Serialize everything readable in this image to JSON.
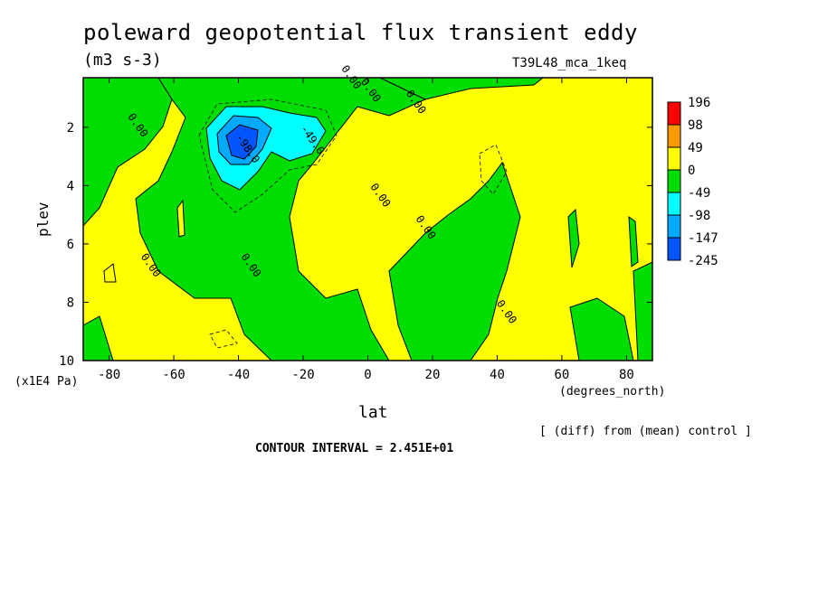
{
  "header": {
    "title": "poleward geopotential flux transient eddy",
    "units": "(m3 s-3)",
    "run_id": "T39L48_mca_1keq"
  },
  "footer": {
    "diff_note": "[ (diff) from (mean) control ]",
    "contour_interval": "CONTOUR INTERVAL = 2.451E+01"
  },
  "chart_data": {
    "type": "heatmap",
    "title": "poleward geopotential flux transient eddy",
    "xlabel": "lat",
    "xunit": "(degrees_north)",
    "ylabel": "plev",
    "yunit": "(x1E4 Pa)",
    "xlim": [
      -88,
      88
    ],
    "ylim": [
      0.3,
      10
    ],
    "y_inverted": true,
    "x_ticks": [
      -80,
      -60,
      -40,
      -20,
      0,
      20,
      40,
      60,
      80
    ],
    "y_ticks": [
      2,
      4,
      6,
      8,
      10
    ],
    "legend_position": "right",
    "colorbar": {
      "levels": [
        "196",
        "98",
        "49",
        "0",
        "-49",
        "-98",
        "-147",
        "-245"
      ],
      "colors": [
        "#ff0000",
        "#ff9900",
        "#ffff00",
        "#00dd00",
        "#00ffff",
        "#00aaff",
        "#0055ff"
      ]
    },
    "contour_labels": [
      {
        "text": "0.00",
        "lat": -72,
        "plev": 2.0
      },
      {
        "text": "0.00",
        "lat": -68,
        "plev": 6.8
      },
      {
        "text": "0.00",
        "lat": -37,
        "plev": 6.8
      },
      {
        "text": "-98.0",
        "lat": -38,
        "plev": 2.8
      },
      {
        "text": "-49.0",
        "lat": -18,
        "plev": 2.5
      },
      {
        "text": "0.00",
        "lat": -6,
        "plev": 0.35
      },
      {
        "text": "0.00",
        "lat": 0,
        "plev": 0.8
      },
      {
        "text": "0.00",
        "lat": 14,
        "plev": 1.2
      },
      {
        "text": "0.00",
        "lat": 3,
        "plev": 4.4
      },
      {
        "text": "0.00",
        "lat": 17,
        "plev": 5.5
      },
      {
        "text": "0.00",
        "lat": 42,
        "plev": 8.4
      }
    ]
  }
}
